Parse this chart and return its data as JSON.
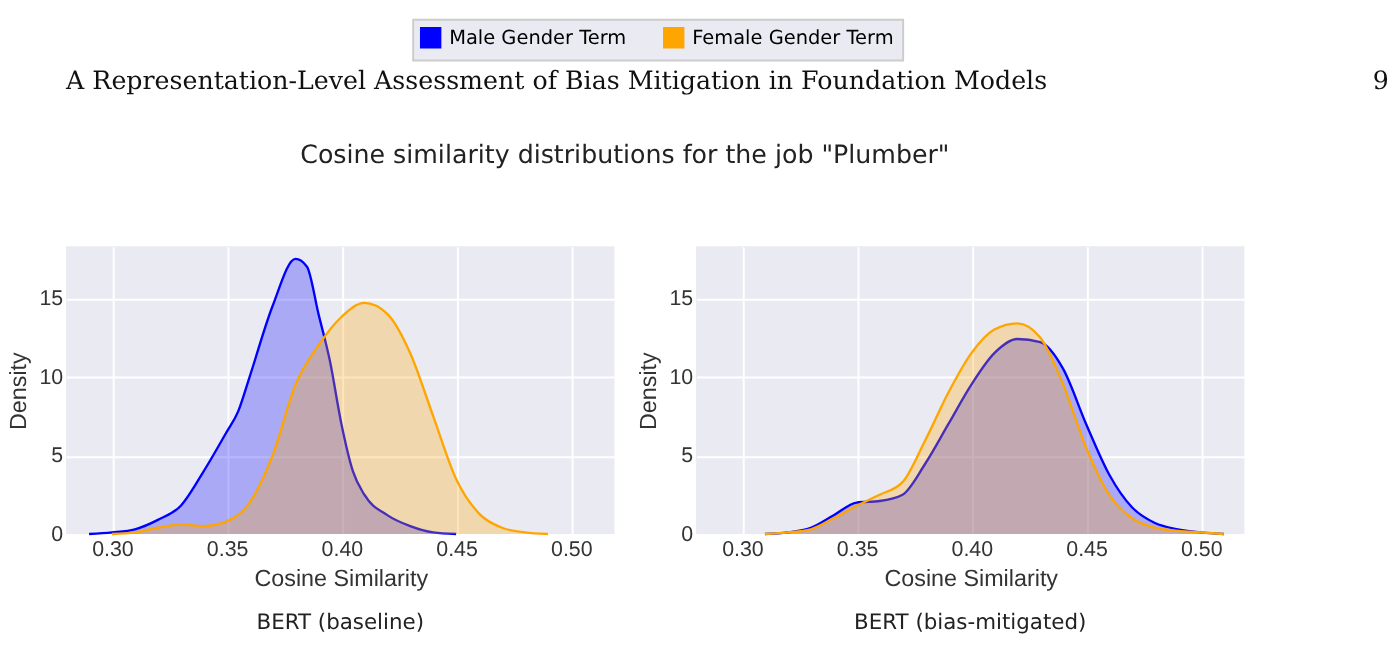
{
  "chart_data": [
    {
      "type": "area",
      "title": "Cosine similarity distributions for the job \"Plumber\"",
      "subtitle": "BERT (baseline)",
      "annotations": [
        "A Representation-Level Assessment of Bias Mitigation in Foundation Models",
        "9"
      ],
      "xlabel": "Cosine Similarity",
      "ylabel": "Density",
      "xlim": [
        0.28,
        0.519
      ],
      "xticks": [
        {
          "value": 0.3,
          "label": "0.30"
        },
        {
          "value": 0.35,
          "label": "0.35"
        },
        {
          "value": 0.4,
          "label": "0.40"
        },
        {
          "value": 0.45,
          "label": "0.45"
        },
        {
          "value": 0.5,
          "label": "0.50"
        }
      ],
      "ylim": [
        0,
        18.3
      ],
      "yticks": [
        0,
        5,
        10,
        15
      ],
      "grid": true,
      "legend": "top",
      "series": [
        {
          "name": "Male Gender Term",
          "color": "#0000ff",
          "x": [
            0.29,
            0.3,
            0.31,
            0.32,
            0.33,
            0.34,
            0.35,
            0.355,
            0.36,
            0.37,
            0.38,
            0.385,
            0.39,
            0.395,
            0.4,
            0.405,
            0.41,
            0.42,
            0.43,
            0.44,
            0.45
          ],
          "values": [
            0,
            0.1,
            0.3,
            0.9,
            1.8,
            4,
            6.5,
            7.8,
            10,
            14.5,
            17.5,
            17,
            14,
            11,
            7,
            4,
            2.5,
            1.2,
            0.5,
            0.1,
            0
          ]
        },
        {
          "name": "Female Gender Term",
          "color": "#ffa500",
          "x": [
            0.3,
            0.31,
            0.32,
            0.33,
            0.34,
            0.35,
            0.36,
            0.37,
            0.38,
            0.39,
            0.4,
            0.41,
            0.42,
            0.43,
            0.44,
            0.45,
            0.46,
            0.47,
            0.48,
            0.49
          ],
          "values": [
            0,
            0.1,
            0.4,
            0.6,
            0.5,
            0.8,
            2,
            5,
            9.5,
            12,
            13.8,
            14.7,
            14,
            11.5,
            7.5,
            3.5,
            1.3,
            0.4,
            0.1,
            0
          ]
        }
      ]
    },
    {
      "type": "area",
      "subtitle": "BERT (bias-mitigated)",
      "xlabel": "Cosine Similarity",
      "ylabel": "Density",
      "xlim": [
        0.28,
        0.519
      ],
      "xticks": [
        {
          "value": 0.3,
          "label": "0.30"
        },
        {
          "value": 0.35,
          "label": "0.35"
        },
        {
          "value": 0.4,
          "label": "0.40"
        },
        {
          "value": 0.45,
          "label": "0.45"
        },
        {
          "value": 0.5,
          "label": "0.50"
        }
      ],
      "ylim": [
        0,
        18.3
      ],
      "yticks": [
        0,
        5,
        10,
        15
      ],
      "grid": true,
      "series": [
        {
          "name": "Male Gender Term",
          "color": "#0000ff",
          "x": [
            0.31,
            0.32,
            0.33,
            0.34,
            0.35,
            0.36,
            0.37,
            0.38,
            0.39,
            0.4,
            0.41,
            0.42,
            0.43,
            0.44,
            0.45,
            0.46,
            0.47,
            0.48,
            0.49,
            0.5,
            0.51
          ],
          "values": [
            0,
            0.1,
            0.4,
            1.2,
            2,
            2.1,
            2.5,
            4.5,
            7,
            9.5,
            11.5,
            12.4,
            12.2,
            10.5,
            7,
            3.8,
            1.7,
            0.7,
            0.3,
            0.1,
            0
          ]
        },
        {
          "name": "Female Gender Term",
          "color": "#ffa500",
          "x": [
            0.31,
            0.32,
            0.33,
            0.34,
            0.35,
            0.36,
            0.37,
            0.38,
            0.39,
            0.4,
            0.41,
            0.42,
            0.43,
            0.44,
            0.45,
            0.46,
            0.47,
            0.48,
            0.49,
            0.5,
            0.51
          ],
          "values": [
            0,
            0.1,
            0.3,
            1,
            1.8,
            2.5,
            3.3,
            6,
            9,
            11.5,
            13,
            13.4,
            12.5,
            9.5,
            5.5,
            2.5,
            1,
            0.4,
            0.2,
            0.1,
            0
          ]
        }
      ]
    }
  ]
}
